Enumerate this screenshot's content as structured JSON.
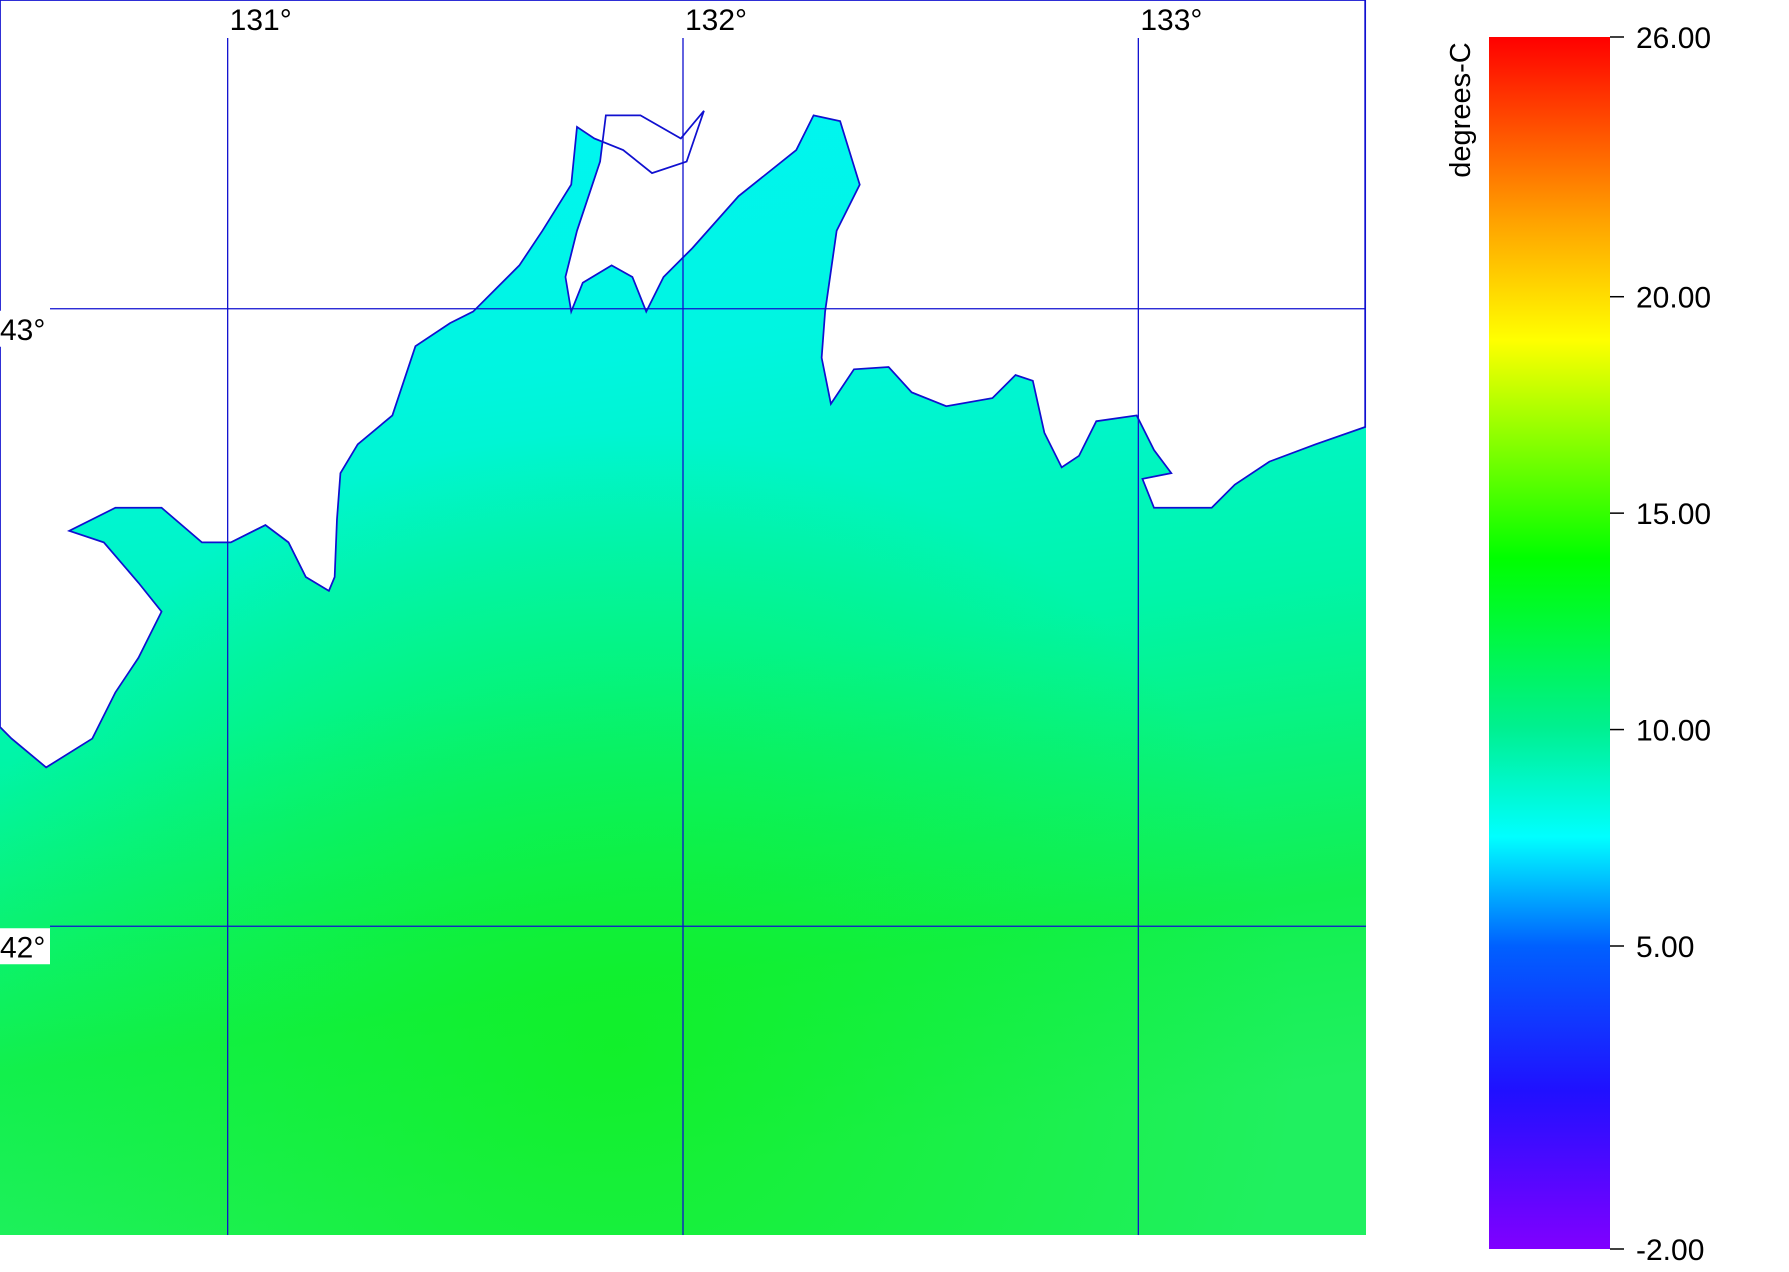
{
  "map": {
    "extent": {
      "lon": [
        130.5,
        133.5
      ],
      "lat": [
        41.5,
        43.5
      ]
    },
    "lon_lines": [
      {
        "value": 131,
        "label": "131°"
      },
      {
        "value": 132,
        "label": "132°"
      },
      {
        "value": 133,
        "label": "133°"
      }
    ],
    "lat_lines": [
      {
        "value": 43,
        "label": "43°"
      },
      {
        "value": 42,
        "label": "42°"
      }
    ],
    "colorbar": {
      "label": "degrees-C",
      "ticks": [
        {
          "value": -2,
          "label": "-2.00"
        },
        {
          "value": 5,
          "label": "5.00"
        },
        {
          "value": 10,
          "label": "10.00"
        },
        {
          "value": 15,
          "label": "15.00"
        },
        {
          "value": 20,
          "label": "20.00"
        },
        {
          "value": 26,
          "label": "26.00"
        }
      ]
    }
  }
}
